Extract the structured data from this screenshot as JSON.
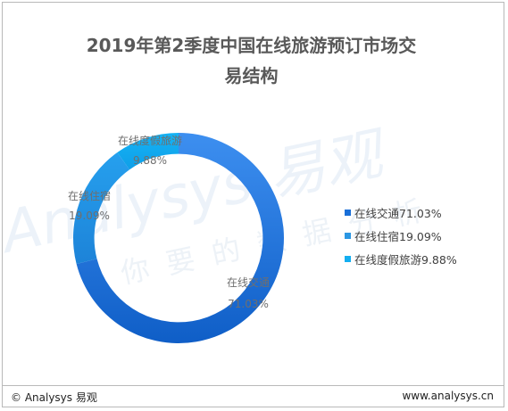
{
  "title_line1": "2019年第2季度中国在线旅游预订市场交",
  "title_line2": "易结构",
  "watermark": {
    "brand": "Analysys 易观",
    "slogan": "你要的数据分析"
  },
  "footer": {
    "left": "© Analysys 易观",
    "right": "www.analysys.cn"
  },
  "colors": {
    "transport": "#1a6fd8",
    "hotel": "#2b97e3",
    "vacation": "#13aef0",
    "accent": "#f4a340"
  },
  "chart_data": {
    "type": "pie",
    "title": "2019年第2季度中国在线旅游预订市场交易结构",
    "legend_position": "right",
    "categories": [
      "在线交通",
      "在线住宿",
      "在线度假旅游"
    ],
    "values": [
      71.03,
      19.09,
      9.88
    ],
    "labels": [
      "71.03%",
      "19.09%",
      "9.88%"
    ],
    "legend": [
      "在线交通71.03%",
      "在线住宿19.09%",
      "在线度假旅游9.88%"
    ],
    "inner_radius_ratio": 0.8
  }
}
